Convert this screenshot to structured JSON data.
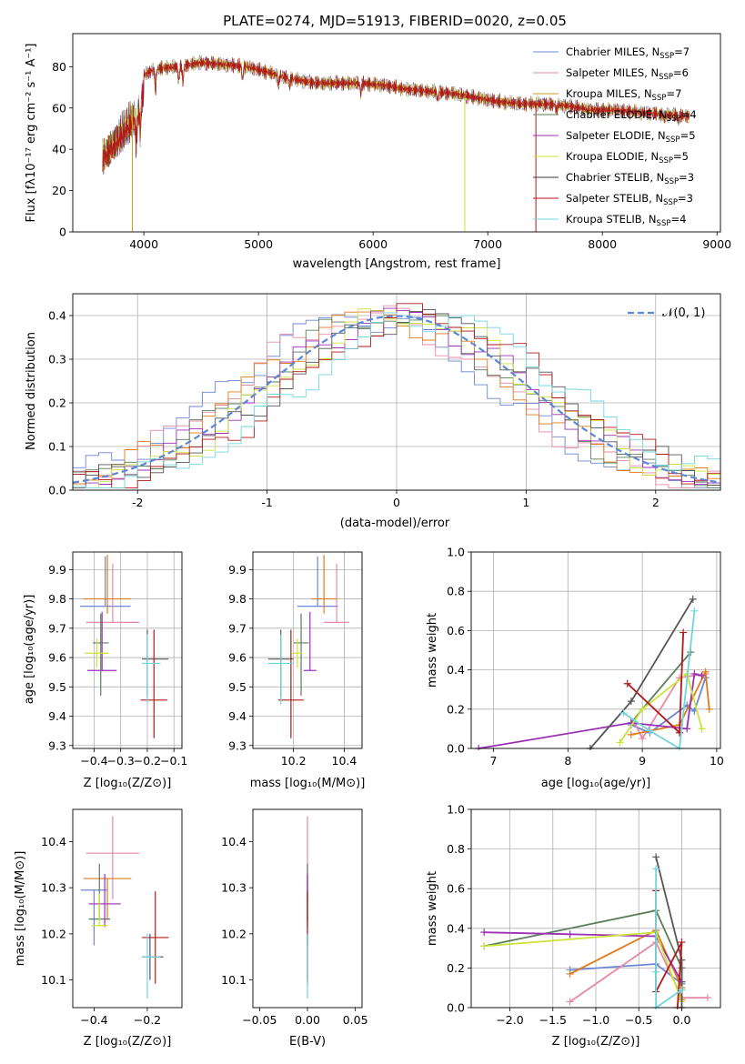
{
  "chart_data": [
    {
      "id": "spectrum",
      "type": "line",
      "title": "PLATE=0274, MJD=51913, FIBERID=0020, z=0.05",
      "xlabel": "wavelength [Angstrom, rest frame]",
      "ylabel": "Flux [fλ10⁻¹⁷ erg cm⁻² s⁻¹ A⁻¹]",
      "xlim": [
        3380,
        9030
      ],
      "ylim": [
        0,
        96
      ],
      "xticks": [
        4000,
        5000,
        6000,
        7000,
        8000,
        9000
      ],
      "yticks": [
        0,
        20,
        40,
        60,
        80
      ],
      "grid": false,
      "legend": "top-right",
      "wavelength_range": [
        3640,
        8760
      ],
      "continuum_points": {
        "x": [
          3640,
          3800,
          3950,
          4000,
          4100,
          4300,
          4500,
          4700,
          4900,
          5100,
          5300,
          5500,
          5700,
          5900,
          6100,
          6300,
          6500,
          6700,
          6900,
          7100,
          7300,
          7500,
          7700,
          7900,
          8100,
          8300,
          8500,
          8760
        ],
        "y": [
          44,
          55,
          66,
          76,
          79,
          80,
          82,
          81,
          80,
          77,
          74,
          72,
          72,
          72,
          71,
          69,
          68,
          67,
          65,
          63,
          62,
          62,
          61,
          59,
          59,
          58,
          57,
          56
        ]
      },
      "series": [
        {
          "name": "Chabrier MILES",
          "n_ssp": "7",
          "color": "#6c85d4"
        },
        {
          "name": "Salpeter MILES",
          "n_ssp": "6",
          "color": "#e58aa6"
        },
        {
          "name": "Kroupa MILES",
          "n_ssp": "7",
          "color": "#c9a218"
        },
        {
          "name": "Chabrier ELODIE",
          "n_ssp": "4",
          "color": "#5a7d5a"
        },
        {
          "name": "Salpeter ELODIE",
          "n_ssp": "5",
          "color": "#9b30b5"
        },
        {
          "name": "Kroupa ELODIE",
          "n_ssp": "5",
          "color": "#cde33a"
        },
        {
          "name": "Chabrier STELIB",
          "n_ssp": "3",
          "color": "#3a3a3a"
        },
        {
          "name": "Salpeter STELIB",
          "n_ssp": "3",
          "color": "#b01a1a"
        },
        {
          "name": "Kroupa STELIB",
          "n_ssp": "4",
          "color": "#70d6dd"
        }
      ],
      "drop_to_zero": [
        {
          "x": 3900,
          "color": "#c9a218"
        },
        {
          "x": 6800,
          "color": "#cde33a"
        },
        {
          "x": 7420,
          "color": "#b01a1a"
        }
      ]
    },
    {
      "id": "residuals",
      "type": "line",
      "xlabel": "(data-model)/error",
      "ylabel": "Normed distribution",
      "xlim": [
        -2.5,
        2.5
      ],
      "ylim": [
        0,
        0.45
      ],
      "xticks": [
        -2,
        -1,
        0,
        1,
        2
      ],
      "yticks": [
        0.0,
        0.1,
        0.2,
        0.3,
        0.4
      ],
      "grid": true,
      "legend": "top-right",
      "bin_width": 0.1,
      "curve_name": "𝒩(0, 1)",
      "curve_color": "#5b88d6",
      "hist_colors": [
        "#6c85d4",
        "#e58aa6",
        "#e07b1a",
        "#5a7d5a",
        "#9b30b5",
        "#cde33a",
        "#555555",
        "#b01a1a",
        "#70d6dd"
      ]
    },
    {
      "id": "age_vs_z",
      "type": "scatter",
      "xlabel": "Z [log₁₀(Z/Z⊙)]",
      "ylabel": "age  [log₁₀(age/yr)]",
      "xlim": [
        -0.48,
        -0.07
      ],
      "ylim": [
        9.29,
        9.96
      ],
      "xticks": [
        -0.4,
        -0.3,
        -0.2,
        -0.1
      ],
      "xtick_labels": [
        "−0.4",
        "−0.3",
        "−0.2",
        "−0.1"
      ],
      "yticks": [
        9.3,
        9.4,
        9.5,
        9.6,
        9.7,
        9.8,
        9.9
      ],
      "grid": true,
      "points": [
        {
          "x": -0.358,
          "y": 9.775,
          "xerr": [
            0.095,
            0.095
          ],
          "yerr": [
            0.0,
            0.17
          ],
          "color": "#6c85d4"
        },
        {
          "x": -0.33,
          "y": 9.72,
          "xerr": [
            0.1,
            0.1
          ],
          "yerr": [
            0.0,
            0.2
          ],
          "color": "#e58aa6"
        },
        {
          "x": -0.35,
          "y": 9.8,
          "xerr": [
            0.09,
            0.09
          ],
          "yerr": [
            0.05,
            0.15
          ],
          "color": "#e07b1a"
        },
        {
          "x": -0.375,
          "y": 9.65,
          "xerr": [
            0.03,
            0.03
          ],
          "yerr": [
            0.18,
            0.1
          ],
          "color": "#5a7d5a"
        },
        {
          "x": -0.37,
          "y": 9.556,
          "xerr": [
            0.055,
            0.055
          ],
          "yerr": [
            0.0,
            0.2
          ],
          "color": "#9b30b5"
        },
        {
          "x": -0.39,
          "y": 9.615,
          "xerr": [
            0.045,
            0.045
          ],
          "yerr": [
            0.05,
            0.05
          ],
          "color": "#cde33a"
        },
        {
          "x": -0.2,
          "y": 9.595,
          "xerr": [
            0.02,
            0.08
          ],
          "yerr": [
            0.13,
            0.1
          ],
          "color": "#555555"
        },
        {
          "x": -0.175,
          "y": 9.455,
          "xerr": [
            0.05,
            0.05
          ],
          "yerr": [
            0.13,
            0.24
          ],
          "color": "#b01a1a"
        },
        {
          "x": -0.2,
          "y": 9.58,
          "xerr": [
            0.02,
            0.05
          ],
          "yerr": [
            0.14,
            0.1
          ],
          "color": "#70d6dd"
        }
      ]
    },
    {
      "id": "age_vs_mass",
      "type": "scatter",
      "xlabel": "mass [log₁₀(M/M⊙)]",
      "xlim": [
        10.04,
        10.47
      ],
      "ylim": [
        9.29,
        9.96
      ],
      "xticks": [
        10.2,
        10.4
      ],
      "yticks": [
        9.3,
        9.4,
        9.5,
        9.6,
        9.7,
        9.8,
        9.9
      ],
      "grid": true,
      "points": [
        {
          "x": 10.295,
          "y": 9.775,
          "xerr": [
            0.08,
            0.08
          ],
          "yerr": [
            0.0,
            0.17
          ],
          "color": "#6c85d4"
        },
        {
          "x": 10.37,
          "y": 9.72,
          "xerr": [
            0.05,
            0.05
          ],
          "yerr": [
            0.0,
            0.2
          ],
          "color": "#e58aa6"
        },
        {
          "x": 10.32,
          "y": 9.8,
          "xerr": [
            0.05,
            0.05
          ],
          "yerr": [
            0.05,
            0.15
          ],
          "color": "#e07b1a"
        },
        {
          "x": 10.23,
          "y": 9.65,
          "xerr": [
            0.03,
            0.03
          ],
          "yerr": [
            0.18,
            0.1
          ],
          "color": "#5a7d5a"
        },
        {
          "x": 10.265,
          "y": 9.556,
          "xerr": [
            0.025,
            0.025
          ],
          "yerr": [
            0.0,
            0.2
          ],
          "color": "#9b30b5"
        },
        {
          "x": 10.215,
          "y": 9.615,
          "xerr": [
            0.02,
            0.02
          ],
          "yerr": [
            0.05,
            0.05
          ],
          "color": "#cde33a"
        },
        {
          "x": 10.15,
          "y": 9.595,
          "xerr": [
            0.05,
            0.05
          ],
          "yerr": [
            0.13,
            0.1
          ],
          "color": "#555555"
        },
        {
          "x": 10.19,
          "y": 9.455,
          "xerr": [
            0.05,
            0.05
          ],
          "yerr": [
            0.13,
            0.24
          ],
          "color": "#b01a1a"
        },
        {
          "x": 10.15,
          "y": 9.58,
          "xerr": [
            0.05,
            0.05
          ],
          "yerr": [
            0.14,
            0.1
          ],
          "color": "#70d6dd"
        }
      ]
    },
    {
      "id": "weight_vs_age",
      "type": "line",
      "xlabel": "age  [log₁₀(age/yr)]",
      "ylabel": "mass weight",
      "xlim": [
        6.7,
        10.05
      ],
      "ylim": [
        0,
        1.0
      ],
      "xticks": [
        7,
        8,
        9,
        10
      ],
      "yticks": [
        0.0,
        0.2,
        0.4,
        0.6,
        0.8,
        1.0
      ],
      "grid": true,
      "series": [
        {
          "color": "#6c85d4",
          "x": [
            8.85,
            9.1,
            9.6,
            9.7,
            9.85
          ],
          "y": [
            0.12,
            0.08,
            0.22,
            0.19,
            0.36
          ]
        },
        {
          "color": "#e58aa6",
          "x": [
            8.9,
            9.0,
            9.5,
            9.85
          ],
          "y": [
            0.13,
            0.05,
            0.36,
            0.38
          ]
        },
        {
          "color": "#e07b1a",
          "x": [
            8.85,
            9.5,
            9.85,
            9.9
          ],
          "y": [
            0.07,
            0.12,
            0.39,
            0.2
          ]
        },
        {
          "color": "#5a7d5a",
          "x": [
            8.85,
            9.0,
            9.65
          ],
          "y": [
            0.13,
            0.2,
            0.49
          ]
        },
        {
          "color": "#9b30b5",
          "x": [
            6.8,
            8.85,
            9.6,
            9.7,
            9.8
          ],
          "y": [
            0.0,
            0.13,
            0.1,
            0.38,
            0.37
          ]
        },
        {
          "color": "#cde33a",
          "x": [
            8.7,
            9.0,
            9.6,
            9.8
          ],
          "y": [
            0.03,
            0.2,
            0.38,
            0.1
          ]
        },
        {
          "color": "#555555",
          "x": [
            8.3,
            8.85,
            9.68
          ],
          "y": [
            0.0,
            0.24,
            0.76
          ]
        },
        {
          "color": "#b01a1a",
          "x": [
            8.8,
            9.5,
            9.55
          ],
          "y": [
            0.33,
            0.08,
            0.59
          ]
        },
        {
          "color": "#70d6dd",
          "x": [
            8.75,
            9.1,
            9.5,
            9.7
          ],
          "y": [
            0.18,
            0.09,
            0.0,
            0.7
          ]
        }
      ]
    },
    {
      "id": "mass_vs_z",
      "type": "scatter",
      "xlabel": "Z [log₁₀(Z/Z⊙)]",
      "ylabel": "mass [log₁₀(M/M⊙)]",
      "xlim": [
        -0.48,
        -0.07
      ],
      "ylim": [
        10.04,
        10.47
      ],
      "xticks": [
        -0.4,
        -0.2
      ],
      "xtick_labels": [
        "−0.4",
        "−0.2"
      ],
      "yticks": [
        10.1,
        10.2,
        10.3,
        10.4
      ],
      "grid": false,
      "points": [
        {
          "x": -0.4,
          "y": 10.295,
          "xerr": [
            0.05,
            0.05
          ],
          "yerr": [
            0.12,
            0.0
          ],
          "color": "#6c85d4"
        },
        {
          "x": -0.33,
          "y": 10.375,
          "xerr": [
            0.1,
            0.1
          ],
          "yerr": [
            0.1,
            0.08
          ],
          "color": "#e58aa6"
        },
        {
          "x": -0.35,
          "y": 10.32,
          "xerr": [
            0.09,
            0.09
          ],
          "yerr": [
            0.09,
            0.0
          ],
          "color": "#e07b1a"
        },
        {
          "x": -0.38,
          "y": 10.232,
          "xerr": [
            0.04,
            0.04
          ],
          "yerr": [
            0.0,
            0.12
          ],
          "color": "#5a7d5a"
        },
        {
          "x": -0.36,
          "y": 10.265,
          "xerr": [
            0.06,
            0.06
          ],
          "yerr": [
            0.05,
            0.065
          ],
          "color": "#9b30b5"
        },
        {
          "x": -0.38,
          "y": 10.218,
          "xerr": [
            0.03,
            0.03
          ],
          "yerr": [
            0.0,
            0.07
          ],
          "color": "#cde33a"
        },
        {
          "x": -0.19,
          "y": 10.15,
          "xerr": [
            0.03,
            0.05
          ],
          "yerr": [
            0.05,
            0.05
          ],
          "color": "#555555"
        },
        {
          "x": -0.17,
          "y": 10.192,
          "xerr": [
            0.05,
            0.05
          ],
          "yerr": [
            0.1,
            0.1
          ],
          "color": "#b01a1a"
        },
        {
          "x": -0.2,
          "y": 10.15,
          "xerr": [
            0.02,
            0.05
          ],
          "yerr": [
            0.09,
            0.05
          ],
          "color": "#70d6dd"
        }
      ]
    },
    {
      "id": "mass_vs_ebv",
      "type": "scatter",
      "xlabel": "E(B-V)",
      "xlim": [
        -0.057,
        0.057
      ],
      "ylim": [
        10.04,
        10.47
      ],
      "xticks": [
        -0.05,
        0.0,
        0.05
      ],
      "xtick_labels": [
        "−0.05",
        "0.00",
        "0.05"
      ],
      "yticks": [
        10.1,
        10.2,
        10.3,
        10.4
      ],
      "grid": false,
      "points": [
        {
          "x": 0.0,
          "y": 10.295,
          "yerr": [
            0.12,
            0.0
          ],
          "color": "#6c85d4"
        },
        {
          "x": 0.0,
          "y": 10.375,
          "yerr": [
            0.1,
            0.08
          ],
          "color": "#e58aa6"
        },
        {
          "x": 0.0,
          "y": 10.32,
          "yerr": [
            0.09,
            0.0
          ],
          "color": "#e07b1a"
        },
        {
          "x": 0.0,
          "y": 10.232,
          "yerr": [
            0.0,
            0.12
          ],
          "color": "#5a7d5a"
        },
        {
          "x": 0.0,
          "y": 10.265,
          "yerr": [
            0.05,
            0.065
          ],
          "color": "#9b30b5"
        },
        {
          "x": 0.0,
          "y": 10.218,
          "yerr": [
            0.0,
            0.07
          ],
          "color": "#cde33a"
        },
        {
          "x": 0.0,
          "y": 10.15,
          "yerr": [
            0.05,
            0.05
          ],
          "color": "#555555"
        },
        {
          "x": 0.0,
          "y": 10.192,
          "yerr": [
            0.1,
            0.1
          ],
          "color": "#b01a1a"
        },
        {
          "x": 0.0,
          "y": 10.15,
          "yerr": [
            0.09,
            0.05
          ],
          "color": "#70d6dd"
        }
      ]
    },
    {
      "id": "weight_vs_z",
      "type": "line",
      "xlabel": "Z [log₁₀(Z/Z⊙)]",
      "ylabel": "mass weight",
      "xlim": [
        -2.45,
        0.45
      ],
      "ylim": [
        0,
        1.0
      ],
      "xticks": [
        -2.0,
        -1.5,
        -1.0,
        -0.5,
        0.0
      ],
      "xtick_labels": [
        "−2.0",
        "−1.5",
        "−1.0",
        "−0.5",
        "0.0"
      ],
      "yticks": [
        0.0,
        0.2,
        0.4,
        0.6,
        0.8,
        1.0
      ],
      "grid": true,
      "series": [
        {
          "color": "#6c85d4",
          "x": [
            -1.3,
            -0.3,
            0.0
          ],
          "y": [
            0.19,
            0.22,
            0.12
          ]
        },
        {
          "color": "#e58aa6",
          "x": [
            -1.3,
            -0.3,
            0.0,
            0.3
          ],
          "y": [
            0.03,
            0.33,
            0.05,
            0.05
          ]
        },
        {
          "color": "#e07b1a",
          "x": [
            -1.3,
            -0.3,
            0.0,
            0.0
          ],
          "y": [
            0.17,
            0.39,
            0.1,
            0.04
          ]
        },
        {
          "color": "#5a7d5a",
          "x": [
            -2.3,
            -0.3,
            0.0,
            0.0
          ],
          "y": [
            0.31,
            0.49,
            0.2,
            0.13
          ]
        },
        {
          "color": "#9b30b5",
          "x": [
            -2.3,
            -1.3,
            -0.3,
            0.0
          ],
          "y": [
            0.38,
            0.37,
            0.36,
            0.13
          ]
        },
        {
          "color": "#cde33a",
          "x": [
            -2.3,
            -0.3,
            0.0
          ],
          "y": [
            0.31,
            0.38,
            0.03
          ]
        },
        {
          "color": "#555555",
          "x": [
            -0.3,
            0.0,
            0.0
          ],
          "y": [
            0.76,
            0.24,
            0.0
          ]
        },
        {
          "color": "#b01a1a",
          "x": [
            -0.3,
            -0.3,
            0.0,
            -0.05
          ],
          "y": [
            0.59,
            0.08,
            0.33,
            0.0
          ]
        },
        {
          "color": "#70d6dd",
          "x": [
            -0.3,
            -0.3,
            -0.3,
            0.0
          ],
          "y": [
            0.7,
            0.18,
            0.0,
            0.09
          ]
        }
      ]
    }
  ]
}
